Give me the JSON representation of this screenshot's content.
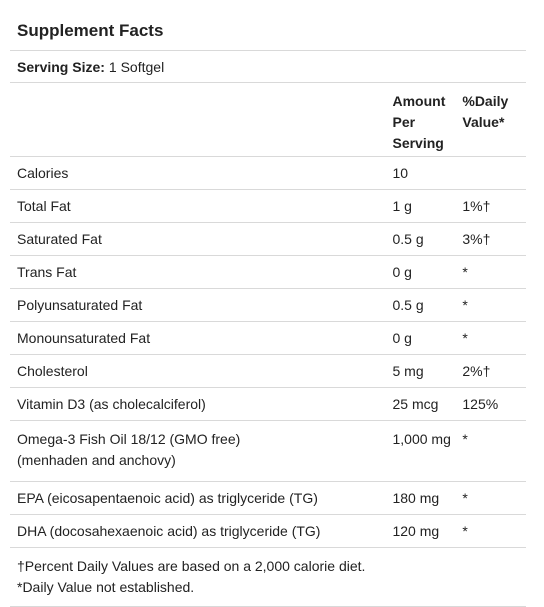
{
  "title": "Supplement Facts",
  "serving": {
    "label": "Serving Size:",
    "value": "1 Softgel"
  },
  "columns": {
    "amount": "Amount Per Serving",
    "daily_value": "%Daily Value*"
  },
  "rows": [
    {
      "name": "Calories",
      "amount": "10",
      "dv": ""
    },
    {
      "name": "Total Fat",
      "amount": "1 g",
      "dv": "1%†"
    },
    {
      "name": "Saturated Fat",
      "amount": "0.5 g",
      "dv": "3%†"
    },
    {
      "name": "Trans Fat",
      "amount": "0 g",
      "dv": "*"
    },
    {
      "name": "Polyunsaturated Fat",
      "amount": "0.5 g",
      "dv": "*"
    },
    {
      "name": "Monounsaturated Fat",
      "amount": "0 g",
      "dv": "*"
    },
    {
      "name": "Cholesterol",
      "amount": "5 mg",
      "dv": "2%†"
    },
    {
      "name": "Vitamin D3 (as cholecalciferol)",
      "amount": "25 mcg",
      "dv": "125%"
    },
    {
      "name": "Omega-3 Fish Oil 18/12 (GMO free) (menhaden and anchovy)",
      "amount": "1,000 mg",
      "dv": "*"
    },
    {
      "name": "EPA (eicosapentaenoic acid) as triglyceride (TG)",
      "amount": "180 mg",
      "dv": "*"
    },
    {
      "name": "DHA (docosahexaenoic acid) as triglyceride (TG)",
      "amount": "120 mg",
      "dv": "*"
    }
  ],
  "footnotes": [
    "†Percent Daily Values are based on a 2,000 calorie diet.",
    "*Daily Value not established."
  ]
}
